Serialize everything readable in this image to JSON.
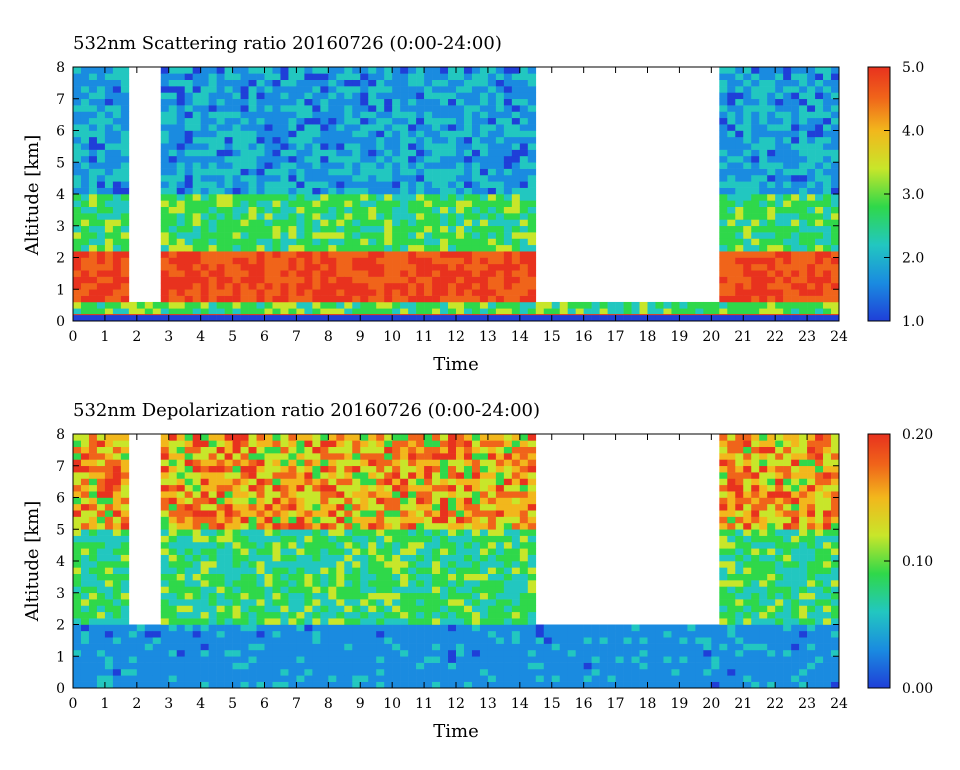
{
  "chart_data": [
    {
      "type": "heatmap",
      "title": "532nm Scattering ratio  20160726 (0:00-24:00)",
      "xlabel": "Time",
      "ylabel": "Altitude [km]",
      "xlim": [
        0,
        24
      ],
      "ylim": [
        0,
        8
      ],
      "x_ticks": [
        "0",
        "1",
        "2",
        "3",
        "4",
        "5",
        "6",
        "7",
        "8",
        "9",
        "10",
        "11",
        "12",
        "13",
        "14",
        "15",
        "16",
        "17",
        "18",
        "19",
        "20",
        "21",
        "22",
        "23",
        "24"
      ],
      "y_ticks": [
        "0",
        "1",
        "2",
        "3",
        "4",
        "5",
        "6",
        "7",
        "8"
      ],
      "colorbar": {
        "range": [
          1.0,
          5.0
        ],
        "tick_labels": [
          "1.0",
          "2.0",
          "3.0",
          "4.0",
          "5.0"
        ]
      },
      "features": {
        "boundary_layer_top_km": 2.0,
        "low_cloud_layer_km": [
          0.7,
          2.3
        ],
        "no_signal_periods_h": [
          [
            1.8,
            2.7
          ],
          [
            14.5,
            20.3
          ]
        ],
        "surface_line_km": 0.2
      }
    },
    {
      "type": "heatmap",
      "title": "532nm Depolarization ratio  20160726 (0:00-24:00)",
      "xlabel": "Time",
      "ylabel": "Altitude [km]",
      "xlim": [
        0,
        24
      ],
      "ylim": [
        0,
        8
      ],
      "x_ticks": [
        "0",
        "1",
        "2",
        "3",
        "4",
        "5",
        "6",
        "7",
        "8",
        "9",
        "10",
        "11",
        "12",
        "13",
        "14",
        "15",
        "16",
        "17",
        "18",
        "19",
        "20",
        "21",
        "22",
        "23",
        "24"
      ],
      "y_ticks": [
        "0",
        "1",
        "2",
        "3",
        "4",
        "5",
        "6",
        "7",
        "8"
      ],
      "colorbar": {
        "range": [
          0.0,
          0.2
        ],
        "tick_labels": [
          "0.00",
          "0.10",
          "0.20"
        ]
      },
      "features": {
        "boundary_layer_top_km": 2.0,
        "high_depol_upper_km": [
          5.0,
          8.0
        ],
        "no_signal_periods_h": [
          [
            1.8,
            2.7
          ],
          [
            14.5,
            20.3
          ]
        ]
      }
    }
  ],
  "colors": {
    "scale": [
      "#1f3fd8",
      "#1a8be0",
      "#22c7c0",
      "#2fd84a",
      "#c8e62a",
      "#f2b71c",
      "#f0641a",
      "#e8321e"
    ],
    "axis": "#000000",
    "background": "#ffffff"
  }
}
